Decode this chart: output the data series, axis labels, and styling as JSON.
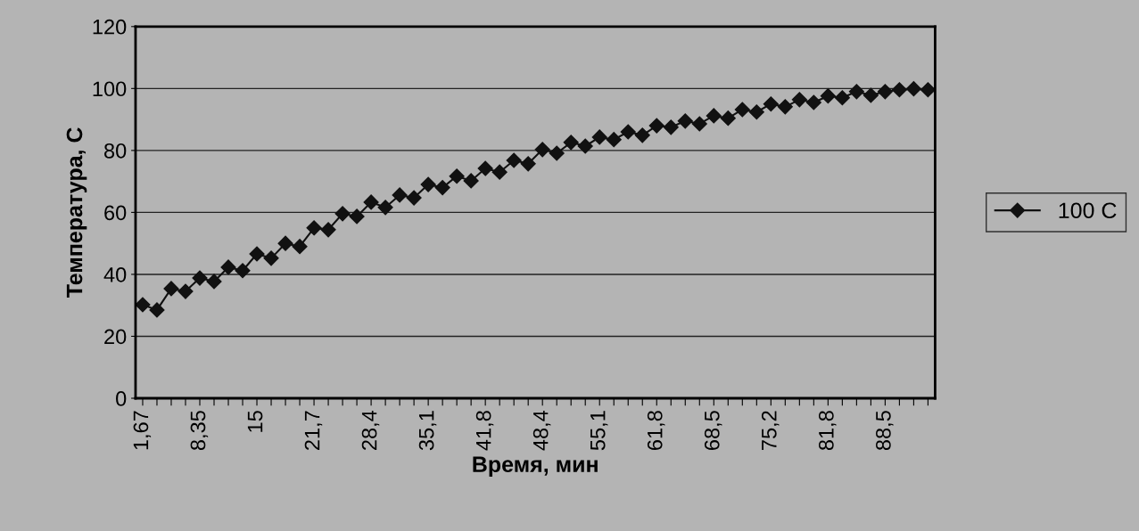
{
  "chart_data": {
    "type": "line",
    "xlabel": "Время, мин",
    "ylabel": "Температура, С",
    "categories": [
      "1,67",
      null,
      null,
      null,
      "8,35",
      null,
      null,
      null,
      "15",
      null,
      null,
      null,
      "21,7",
      null,
      null,
      null,
      "28,4",
      null,
      null,
      null,
      "35,1",
      null,
      null,
      null,
      "41,8",
      null,
      null,
      null,
      "48,4",
      null,
      null,
      null,
      "55,1",
      null,
      null,
      null,
      "61,8",
      null,
      null,
      null,
      "68,5",
      null,
      null,
      null,
      "75,2",
      null,
      null,
      null,
      "81,8",
      null,
      null,
      null,
      "88,5",
      null,
      null,
      null
    ],
    "series": [
      {
        "name": "100 C",
        "color": "#111111",
        "values": [
          30.2,
          28.5,
          35.4,
          34.5,
          38.8,
          37.7,
          42.3,
          41.2,
          46.6,
          45.2,
          50.0,
          49.0,
          55.0,
          54.4,
          59.6,
          58.7,
          63.3,
          61.6,
          65.6,
          64.7,
          69.0,
          68.0,
          71.7,
          70.2,
          74.2,
          73.0,
          76.8,
          75.7,
          80.3,
          79.1,
          82.6,
          81.4,
          84.3,
          83.5,
          86.0,
          84.9,
          88.0,
          87.5,
          89.5,
          88.6,
          91.2,
          90.4,
          93.2,
          92.4,
          95.0,
          94.1,
          96.4,
          95.5,
          97.6,
          97.0,
          99.0,
          97.8,
          99.0,
          99.6,
          99.9,
          99.6
        ]
      }
    ],
    "ylim": [
      0,
      120
    ],
    "yticks": [
      0,
      20,
      40,
      60,
      80,
      100,
      120
    ],
    "grid": "y",
    "legend": "right",
    "marker": "diamond",
    "line_style": "solid"
  }
}
